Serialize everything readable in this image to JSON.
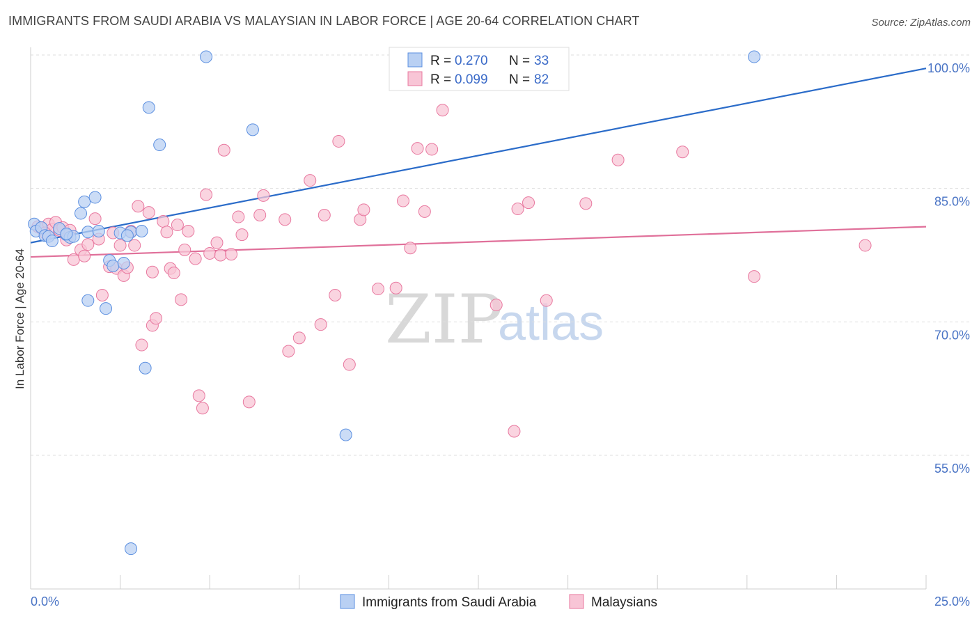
{
  "header": {
    "title": "IMMIGRANTS FROM SAUDI ARABIA VS MALAYSIAN IN LABOR FORCE | AGE 20-64 CORRELATION CHART",
    "source": "Source: ZipAtlas.com"
  },
  "watermark": {
    "zip": "ZIP",
    "atlas": "atlas"
  },
  "legend_box": {
    "rows": [
      {
        "r_label": "R = ",
        "r_value": "0.270",
        "n_label": "N = ",
        "n_value": "33"
      },
      {
        "r_label": "R = ",
        "r_value": "0.099",
        "n_label": "N = ",
        "n_value": "82"
      }
    ]
  },
  "chart_data": {
    "type": "scatter",
    "title": "IMMIGRANTS FROM SAUDI ARABIA VS MALAYSIAN IN LABOR FORCE | AGE 20-64 CORRELATION CHART",
    "xlabel": "",
    "ylabel": "In Labor Force | Age 20-64",
    "xlim": [
      0,
      25
    ],
    "ylim": [
      40,
      102.5
    ],
    "x_tick_labels": [
      "0.0%",
      "25.0%"
    ],
    "y_ticks": [
      55,
      70,
      85,
      100
    ],
    "y_tick_labels": [
      "55.0%",
      "70.0%",
      "85.0%",
      "100.0%"
    ],
    "grid": true,
    "legend_position": "bottom-center",
    "colors": {
      "blue": "#5b8fe0",
      "blue_fill": "#b9d0f3",
      "blue_line": "#2b6cc9",
      "pink": "#e8789f",
      "pink_fill": "#f8c5d6",
      "pink_line": "#e0709a"
    },
    "series": [
      {
        "name": "Immigrants from Saudi Arabia",
        "color": "blue",
        "trend": {
          "x0": 0,
          "y0": 78.9,
          "x1": 25,
          "y1": 98.5
        },
        "points": [
          [
            0.1,
            81.0
          ],
          [
            0.15,
            80.2
          ],
          [
            0.3,
            80.6
          ],
          [
            0.4,
            79.7
          ],
          [
            0.5,
            79.6
          ],
          [
            0.6,
            79.1
          ],
          [
            0.8,
            80.5
          ],
          [
            1.0,
            79.8
          ],
          [
            1.1,
            79.5
          ],
          [
            1.2,
            79.6
          ],
          [
            1.5,
            83.5
          ],
          [
            1.4,
            82.2
          ],
          [
            1.6,
            80.1
          ],
          [
            1.9,
            80.2
          ],
          [
            1.8,
            84.0
          ],
          [
            1.6,
            72.4
          ],
          [
            2.1,
            71.5
          ],
          [
            2.2,
            76.9
          ],
          [
            2.3,
            76.3
          ],
          [
            2.5,
            80.0
          ],
          [
            2.6,
            76.6
          ],
          [
            2.8,
            80.1
          ],
          [
            3.1,
            80.2
          ],
          [
            3.2,
            64.8
          ],
          [
            3.3,
            94.1
          ],
          [
            3.6,
            89.9
          ],
          [
            4.9,
            99.8
          ],
          [
            6.2,
            91.6
          ],
          [
            8.8,
            57.3
          ],
          [
            2.8,
            44.5
          ],
          [
            20.2,
            99.8
          ],
          [
            2.7,
            79.7
          ],
          [
            1.0,
            79.9
          ]
        ]
      },
      {
        "name": "Malaysians",
        "color": "pink",
        "trend": {
          "x0": 0,
          "y0": 77.3,
          "x1": 25,
          "y1": 80.7
        },
        "points": [
          [
            0.2,
            80.7
          ],
          [
            0.3,
            80.5
          ],
          [
            0.5,
            81.0
          ],
          [
            0.6,
            80.4
          ],
          [
            0.7,
            81.2
          ],
          [
            0.8,
            80.3
          ],
          [
            0.9,
            80.6
          ],
          [
            1.0,
            79.2
          ],
          [
            1.1,
            80.3
          ],
          [
            1.2,
            77.0
          ],
          [
            1.4,
            78.1
          ],
          [
            1.5,
            77.4
          ],
          [
            1.6,
            78.7
          ],
          [
            1.8,
            81.6
          ],
          [
            1.9,
            79.3
          ],
          [
            2.0,
            73.0
          ],
          [
            2.2,
            76.2
          ],
          [
            2.3,
            80.0
          ],
          [
            2.4,
            76.0
          ],
          [
            2.5,
            78.6
          ],
          [
            2.6,
            75.2
          ],
          [
            2.7,
            76.1
          ],
          [
            2.8,
            80.2
          ],
          [
            2.9,
            78.6
          ],
          [
            3.0,
            83.0
          ],
          [
            3.1,
            67.4
          ],
          [
            3.3,
            82.3
          ],
          [
            3.4,
            69.6
          ],
          [
            3.5,
            70.4
          ],
          [
            3.7,
            81.3
          ],
          [
            3.8,
            80.1
          ],
          [
            3.9,
            76.0
          ],
          [
            4.0,
            75.5
          ],
          [
            4.1,
            80.9
          ],
          [
            4.2,
            72.5
          ],
          [
            4.3,
            78.1
          ],
          [
            4.4,
            80.2
          ],
          [
            4.6,
            77.1
          ],
          [
            4.7,
            61.7
          ],
          [
            4.8,
            60.3
          ],
          [
            4.9,
            84.3
          ],
          [
            5.0,
            77.7
          ],
          [
            5.2,
            78.9
          ],
          [
            5.3,
            77.5
          ],
          [
            5.4,
            89.3
          ],
          [
            5.6,
            77.6
          ],
          [
            5.8,
            81.8
          ],
          [
            5.9,
            79.8
          ],
          [
            6.1,
            61.0
          ],
          [
            6.4,
            82.0
          ],
          [
            6.5,
            84.2
          ],
          [
            7.1,
            81.5
          ],
          [
            7.2,
            66.7
          ],
          [
            7.5,
            68.2
          ],
          [
            7.8,
            85.9
          ],
          [
            8.1,
            69.7
          ],
          [
            8.2,
            82.0
          ],
          [
            8.5,
            73.0
          ],
          [
            8.6,
            90.3
          ],
          [
            8.9,
            65.2
          ],
          [
            9.2,
            81.5
          ],
          [
            9.3,
            82.6
          ],
          [
            9.7,
            73.7
          ],
          [
            10.2,
            73.8
          ],
          [
            10.4,
            83.6
          ],
          [
            10.6,
            78.3
          ],
          [
            10.8,
            89.5
          ],
          [
            11.0,
            82.4
          ],
          [
            11.2,
            89.4
          ],
          [
            11.5,
            93.8
          ],
          [
            13.0,
            71.9
          ],
          [
            13.6,
            82.7
          ],
          [
            13.9,
            83.4
          ],
          [
            14.4,
            72.4
          ],
          [
            15.5,
            83.3
          ],
          [
            16.4,
            88.2
          ],
          [
            18.2,
            89.1
          ],
          [
            20.2,
            75.1
          ],
          [
            23.3,
            78.6
          ],
          [
            13.5,
            57.7
          ],
          [
            3.4,
            75.6
          ],
          [
            0.4,
            80.0
          ]
        ]
      }
    ]
  }
}
